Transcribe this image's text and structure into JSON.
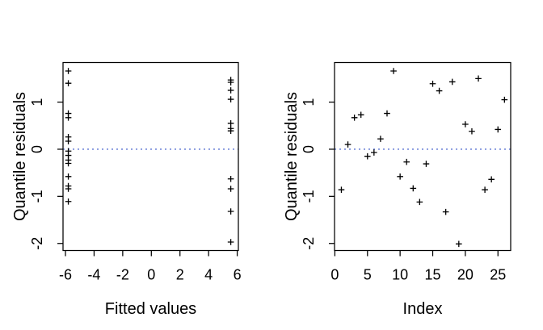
{
  "figure": {
    "background": "#ffffff",
    "axis_color": "#000000",
    "tick_label_color": "#000000"
  },
  "chart_data": [
    {
      "type": "scatter",
      "title": "",
      "xlabel": "Fitted values",
      "ylabel": "Quantile residuals",
      "marker": "plus",
      "marker_color": "#000000",
      "grid": false,
      "legend": null,
      "xlim": [
        -6.17,
        6.08
      ],
      "ylim": [
        -2.15,
        1.84
      ],
      "xticks": [
        -6,
        -4,
        -2,
        0,
        2,
        4,
        6
      ],
      "yticks": [
        -2,
        -1,
        0,
        1
      ],
      "zero_line": {
        "y": 0,
        "style": "dotted",
        "color": "#3050c8"
      },
      "points": [
        [
          -5.8,
          1.66
        ],
        [
          -5.8,
          1.4
        ],
        [
          -5.8,
          0.76
        ],
        [
          -5.8,
          0.67
        ],
        [
          -5.8,
          0.26
        ],
        [
          -5.8,
          0.17
        ],
        [
          -5.8,
          -0.04
        ],
        [
          -5.8,
          -0.13
        ],
        [
          -5.8,
          -0.23
        ],
        [
          -5.8,
          -0.3
        ],
        [
          -5.8,
          -0.58
        ],
        [
          -5.8,
          -0.78
        ],
        [
          -5.8,
          -0.84
        ],
        [
          -5.8,
          -1.11
        ],
        [
          5.55,
          1.47
        ],
        [
          5.55,
          1.42
        ],
        [
          5.55,
          1.25
        ],
        [
          5.55,
          1.06
        ],
        [
          5.55,
          0.55
        ],
        [
          5.55,
          0.44
        ],
        [
          5.55,
          0.39
        ],
        [
          5.55,
          -0.63
        ],
        [
          5.55,
          -0.84
        ],
        [
          5.55,
          -1.32
        ],
        [
          5.55,
          -1.97
        ]
      ]
    },
    {
      "type": "scatter",
      "title": "",
      "xlabel": "Index",
      "ylabel": "Quantile residuals",
      "marker": "plus",
      "marker_color": "#000000",
      "grid": false,
      "legend": null,
      "xlim": [
        -0.05,
        26.95
      ],
      "ylim": [
        -2.15,
        1.84
      ],
      "xticks": [
        0,
        5,
        10,
        15,
        20,
        25
      ],
      "yticks": [
        -2,
        -1,
        0,
        1
      ],
      "zero_line": {
        "y": 0,
        "style": "dotted",
        "color": "#3050c8"
      },
      "points": [
        [
          1,
          -0.86
        ],
        [
          2,
          0.1
        ],
        [
          3,
          0.67
        ],
        [
          4,
          0.73
        ],
        [
          5,
          -0.15
        ],
        [
          6,
          -0.07
        ],
        [
          7,
          0.22
        ],
        [
          8,
          0.76
        ],
        [
          9,
          1.66
        ],
        [
          10,
          -0.58
        ],
        [
          11,
          -0.27
        ],
        [
          12,
          -0.83
        ],
        [
          13,
          -1.12
        ],
        [
          14,
          -0.31
        ],
        [
          15,
          1.39
        ],
        [
          16,
          1.24
        ],
        [
          17,
          -1.33
        ],
        [
          18,
          1.43
        ],
        [
          19,
          -2.01
        ],
        [
          20,
          0.53
        ],
        [
          21,
          0.38
        ],
        [
          22,
          1.5
        ],
        [
          23,
          -0.86
        ],
        [
          24,
          -0.64
        ],
        [
          25,
          0.42
        ],
        [
          26,
          1.05
        ]
      ]
    }
  ]
}
